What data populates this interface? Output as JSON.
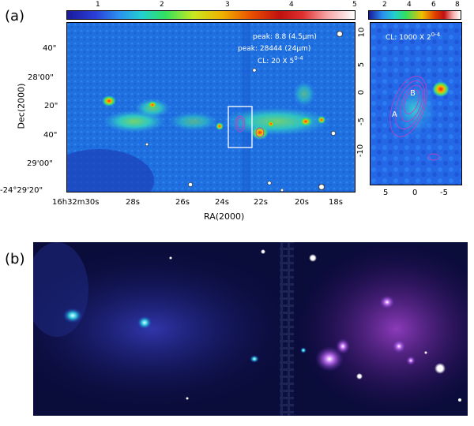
{
  "panel_a": {
    "label": "(a)",
    "colorbar_ticks": [
      "1",
      "2",
      "3",
      "4",
      "5"
    ],
    "annotations": {
      "peak1": "peak: 8.8 (4.5μm)",
      "peak2": "peak: 28444 (24μm)",
      "cl": "CL: 20 X 5",
      "cl_exp": "0-4"
    },
    "y_ticks": [
      "40\"",
      "28'00\"",
      "20\"",
      "40\"",
      "29'00\"",
      "-24°29'20\""
    ],
    "y_title": "Dec(2000)",
    "x_ticks_first": "16h32m30s",
    "x_ticks": [
      "28s",
      "26s",
      "24s",
      "22s",
      "20s",
      "18s"
    ],
    "x_title": "RA(2000)"
  },
  "inset": {
    "colorbar_ticks": [
      "2",
      "4",
      "6",
      "8"
    ],
    "cl": "CL: 1000 X 2",
    "cl_exp": "0-4",
    "label_A": "A",
    "label_B": "B",
    "y_ticks": [
      "10",
      "5",
      "0",
      "-5",
      "-10"
    ],
    "x_ticks": [
      "5",
      "0",
      "-5"
    ]
  },
  "panel_b": {
    "label": "(b)"
  }
}
